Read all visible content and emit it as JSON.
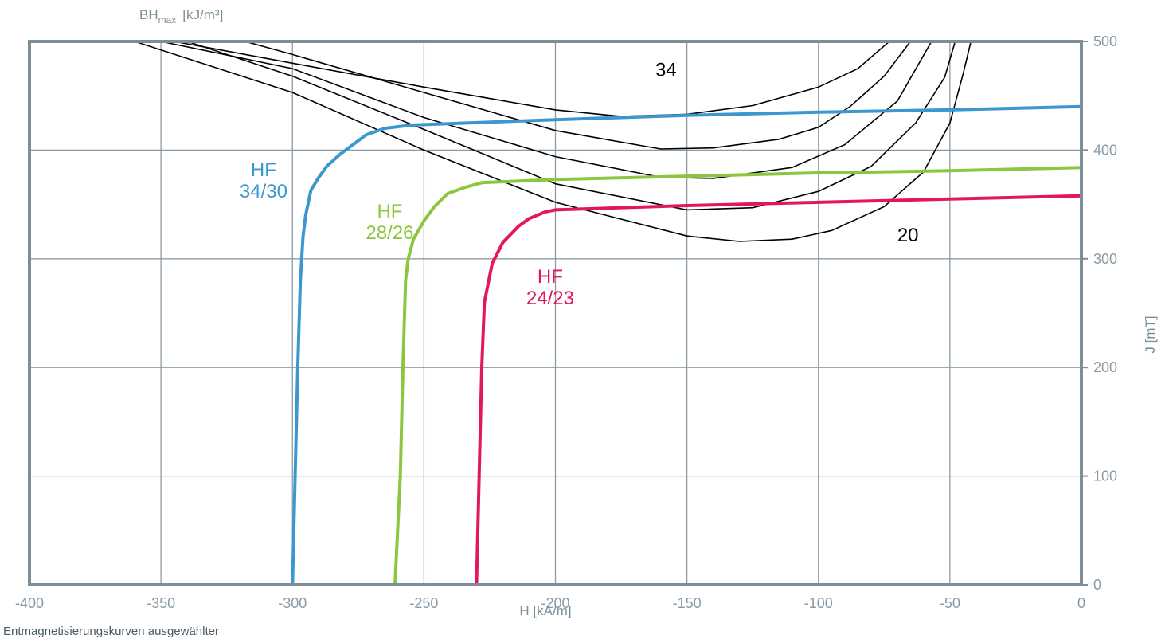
{
  "caption": "Entmagnetisierungskurven ausgewählter",
  "chart_data": {
    "type": "line",
    "x_label": "H [kA/m]",
    "y_label_right": "J [mT]",
    "y_label_top_base": "BH",
    "y_label_top_sub": "max",
    "y_label_top_unit": "[kJ/m³]",
    "xlim": [
      -400,
      0
    ],
    "ylim": [
      0,
      500
    ],
    "x_ticks": [
      -400,
      -350,
      -300,
      -250,
      -200,
      -150,
      -100,
      -50,
      0
    ],
    "y_ticks": [
      0,
      100,
      200,
      300,
      400,
      500
    ],
    "grid": true,
    "colors": {
      "grid": "#8c9ba5",
      "frame": "#7e8e99",
      "tick_text": "#8a9aa5",
      "blue": "#3d97cf",
      "green": "#8cc63f",
      "red": "#e2175c",
      "black": "#000000"
    },
    "series": [
      {
        "name": "HF 34/30",
        "color": "#3d97cf",
        "points": [
          [
            -300,
            0
          ],
          [
            -299,
            100
          ],
          [
            -298,
            200
          ],
          [
            -297,
            280
          ],
          [
            -296,
            320
          ],
          [
            -295,
            340
          ],
          [
            -293,
            363
          ],
          [
            -290,
            375
          ],
          [
            -287,
            385
          ],
          [
            -282,
            396
          ],
          [
            -277,
            405
          ],
          [
            -272,
            414
          ],
          [
            -265,
            420
          ],
          [
            -255,
            423
          ],
          [
            -200,
            428
          ],
          [
            -150,
            432
          ],
          [
            -100,
            435
          ],
          [
            -50,
            437
          ],
          [
            0,
            440
          ]
        ]
      },
      {
        "name": "HF 28/26",
        "color": "#8cc63f",
        "points": [
          [
            -261,
            0
          ],
          [
            -259,
            100
          ],
          [
            -258,
            200
          ],
          [
            -257,
            280
          ],
          [
            -256,
            300
          ],
          [
            -254,
            318
          ],
          [
            -250,
            335
          ],
          [
            -246,
            348
          ],
          [
            -241,
            360
          ],
          [
            -234,
            366
          ],
          [
            -228,
            370
          ],
          [
            -200,
            373
          ],
          [
            -150,
            376
          ],
          [
            -100,
            379
          ],
          [
            -50,
            381
          ],
          [
            0,
            384
          ]
        ]
      },
      {
        "name": "HF 24/23",
        "color": "#e2175c",
        "points": [
          [
            -230,
            0
          ],
          [
            -229,
            100
          ],
          [
            -228,
            200
          ],
          [
            -227,
            260
          ],
          [
            -224,
            296
          ],
          [
            -220,
            315
          ],
          [
            -214,
            330
          ],
          [
            -210,
            337
          ],
          [
            -204,
            343
          ],
          [
            -200,
            345
          ],
          [
            -150,
            349
          ],
          [
            -100,
            352
          ],
          [
            -50,
            355
          ],
          [
            0,
            358
          ]
        ]
      }
    ],
    "bh_curves": [
      {
        "label": "34",
        "points": [
          [
            -345,
            500
          ],
          [
            -300,
            480
          ],
          [
            -250,
            458
          ],
          [
            -200,
            437
          ],
          [
            -175,
            431
          ],
          [
            -150,
            433
          ],
          [
            -125,
            441
          ],
          [
            -100,
            458
          ],
          [
            -85,
            475
          ],
          [
            -73,
            500
          ]
        ]
      },
      {
        "points": [
          [
            -318,
            500
          ],
          [
            -300,
            488
          ],
          [
            -250,
            453
          ],
          [
            -200,
            418
          ],
          [
            -160,
            401
          ],
          [
            -140,
            402
          ],
          [
            -115,
            410
          ],
          [
            -100,
            421
          ],
          [
            -88,
            440
          ],
          [
            -75,
            468
          ],
          [
            -65,
            500
          ]
        ]
      },
      {
        "points": [
          [
            -350,
            500
          ],
          [
            -300,
            475
          ],
          [
            -250,
            430
          ],
          [
            -200,
            394
          ],
          [
            -160,
            375
          ],
          [
            -140,
            374
          ],
          [
            -110,
            384
          ],
          [
            -90,
            405
          ],
          [
            -70,
            445
          ],
          [
            -57,
            500
          ]
        ]
      },
      {
        "points": [
          [
            -340,
            500
          ],
          [
            -300,
            468
          ],
          [
            -250,
            419
          ],
          [
            -200,
            369
          ],
          [
            -150,
            345
          ],
          [
            -125,
            347
          ],
          [
            -100,
            362
          ],
          [
            -80,
            385
          ],
          [
            -63,
            425
          ],
          [
            -52,
            467
          ],
          [
            -48,
            500
          ]
        ]
      },
      {
        "label": "20",
        "points": [
          [
            -360,
            500
          ],
          [
            -300,
            453
          ],
          [
            -250,
            400
          ],
          [
            -200,
            352
          ],
          [
            -150,
            321
          ],
          [
            -130,
            316
          ],
          [
            -110,
            318
          ],
          [
            -95,
            326
          ],
          [
            -75,
            348
          ],
          [
            -60,
            380
          ],
          [
            -50,
            425
          ],
          [
            -45,
            470
          ],
          [
            -42,
            500
          ]
        ]
      }
    ],
    "annotations": [
      {
        "lines": [
          "HF",
          "34/30"
        ],
        "color": "#3d97cf",
        "x": -311,
        "y": 376,
        "line_gap": 27
      },
      {
        "lines": [
          "HF",
          "28/26"
        ],
        "color": "#8cc63f",
        "x": -263,
        "y": 338,
        "line_gap": 27
      },
      {
        "lines": [
          "HF",
          "24/23"
        ],
        "color": "#e2175c",
        "x": -202,
        "y": 278,
        "line_gap": 27
      },
      {
        "lines": [
          "34"
        ],
        "color": "#000000",
        "x": -162,
        "y": 468,
        "line_gap": 0
      },
      {
        "lines": [
          "20"
        ],
        "color": "#000000",
        "x": -70,
        "y": 316,
        "line_gap": 0
      }
    ]
  }
}
